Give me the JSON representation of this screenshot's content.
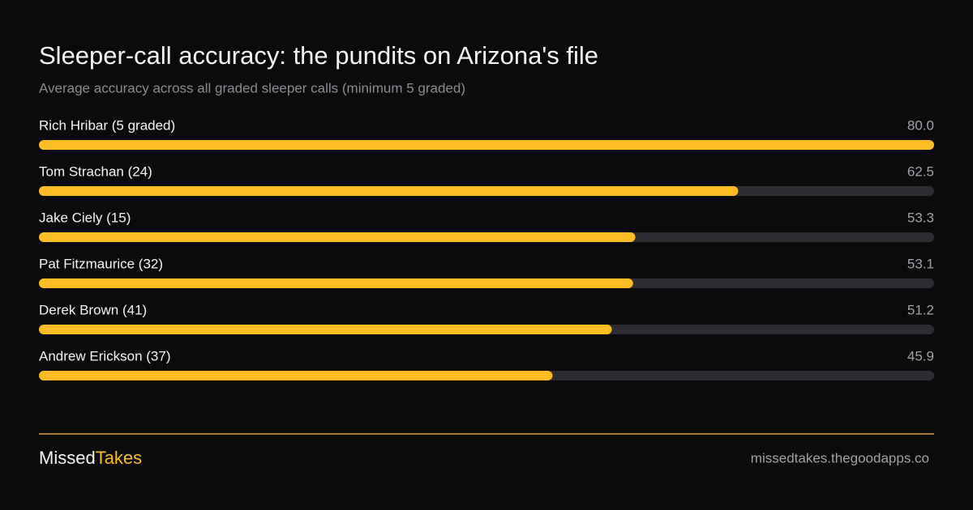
{
  "chart_data": {
    "type": "bar",
    "orientation": "horizontal",
    "title": "Sleeper-call accuracy: the pundits on Arizona's file",
    "subtitle": "Average accuracy across all graded sleeper calls (minimum 5 graded)",
    "categories": [
      "Rich Hribar (5 graded)",
      "Tom Strachan (24)",
      "Jake Ciely (15)",
      "Pat Fitzmaurice (32)",
      "Derek Brown (41)",
      "Andrew Erickson (37)"
    ],
    "values": [
      80.0,
      62.5,
      53.3,
      53.1,
      51.2,
      45.9
    ],
    "value_labels": [
      "80.0",
      "62.5",
      "53.3",
      "53.1",
      "51.2",
      "45.9"
    ],
    "color": "#fbbd23",
    "track_color": "#2e2c33",
    "xlim": [
      0,
      80
    ]
  },
  "footer": {
    "brand_left": "Missed",
    "brand_right": "Takes",
    "url": "missedtakes.thegoodapps.co"
  }
}
